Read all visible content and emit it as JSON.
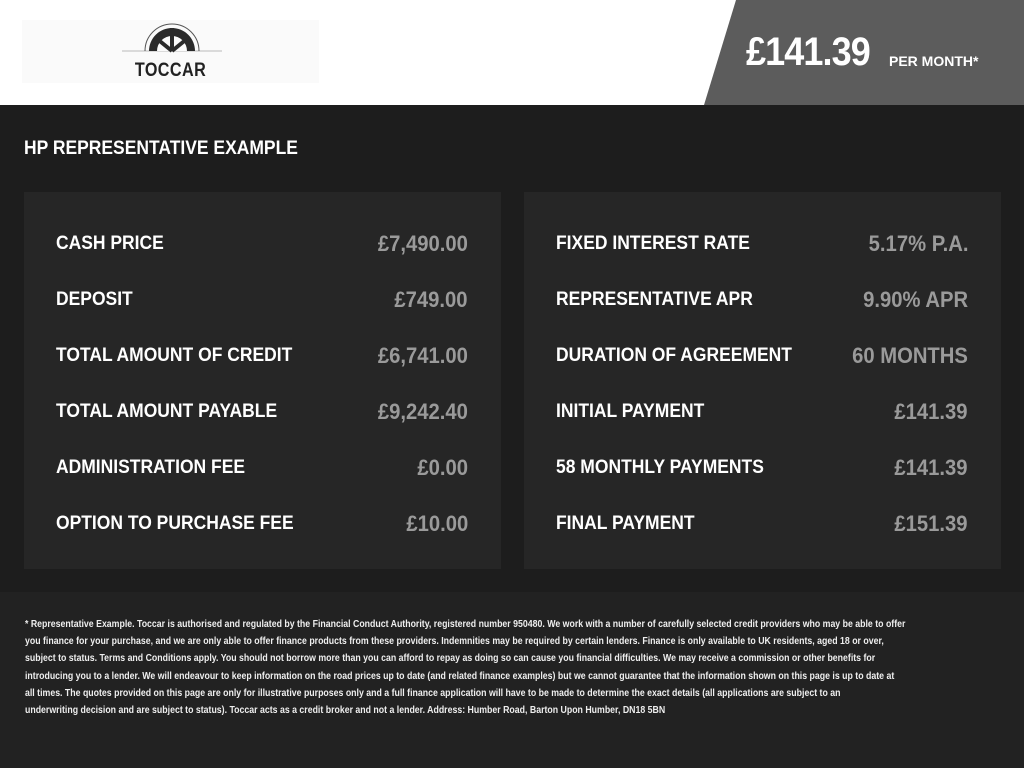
{
  "header": {
    "logo_text": "TOCCAR",
    "price": "£141.39",
    "per_month": "PER MONTH*"
  },
  "title": "HP REPRESENTATIVE EXAMPLE",
  "left_panel": [
    {
      "label": "CASH PRICE",
      "value": "£7,490.00"
    },
    {
      "label": "DEPOSIT",
      "value": "£749.00"
    },
    {
      "label": "TOTAL AMOUNT OF CREDIT",
      "value": "£6,741.00"
    },
    {
      "label": "TOTAL AMOUNT PAYABLE",
      "value": "£9,242.40"
    },
    {
      "label": "ADMINISTRATION FEE",
      "value": "£0.00"
    },
    {
      "label": "OPTION TO PURCHASE FEE",
      "value": "£10.00"
    }
  ],
  "right_panel": [
    {
      "label": "FIXED INTEREST RATE",
      "value": "5.17% P.A."
    },
    {
      "label": "REPRESENTATIVE APR",
      "value": "9.90% APR"
    },
    {
      "label": "DURATION OF AGREEMENT",
      "value": "60 MONTHS"
    },
    {
      "label": "INITIAL PAYMENT",
      "value": "£141.39"
    },
    {
      "label": "58 MONTHLY PAYMENTS",
      "value": "£141.39"
    },
    {
      "label": "FINAL PAYMENT",
      "value": "£151.39"
    }
  ],
  "disclaimer_lines": [
    "* Representative Example. Toccar is authorised and regulated by the Financial Conduct Authority, registered number 950480. We work with a number of carefully selected credit providers who may be able to offer",
    "you finance for your purchase, and we are only able to offer finance products from these providers. Indemnities may be required by certain lenders. Finance is only available to UK residents, aged 18 or over,",
    "subject to status. Terms and Conditions apply. You should not borrow more than you can afford to repay as doing so can cause you financial difficulties. We may receive a commission or other benefits for",
    "introducing you to a lender. We will endeavour to keep information on the road prices up to date (and related finance examples) but we cannot guarantee that the information shown on this page is up to date at",
    "all times. The quotes provided on this page are only for illustrative purposes only and a full finance application will have to be made to determine the exact details (all applications are subject to an",
    "underwriting decision and are subject to status). Toccar acts as a credit broker and not a lender. Address: Humber Road, Barton Upon Humber, DN18 5BN"
  ]
}
